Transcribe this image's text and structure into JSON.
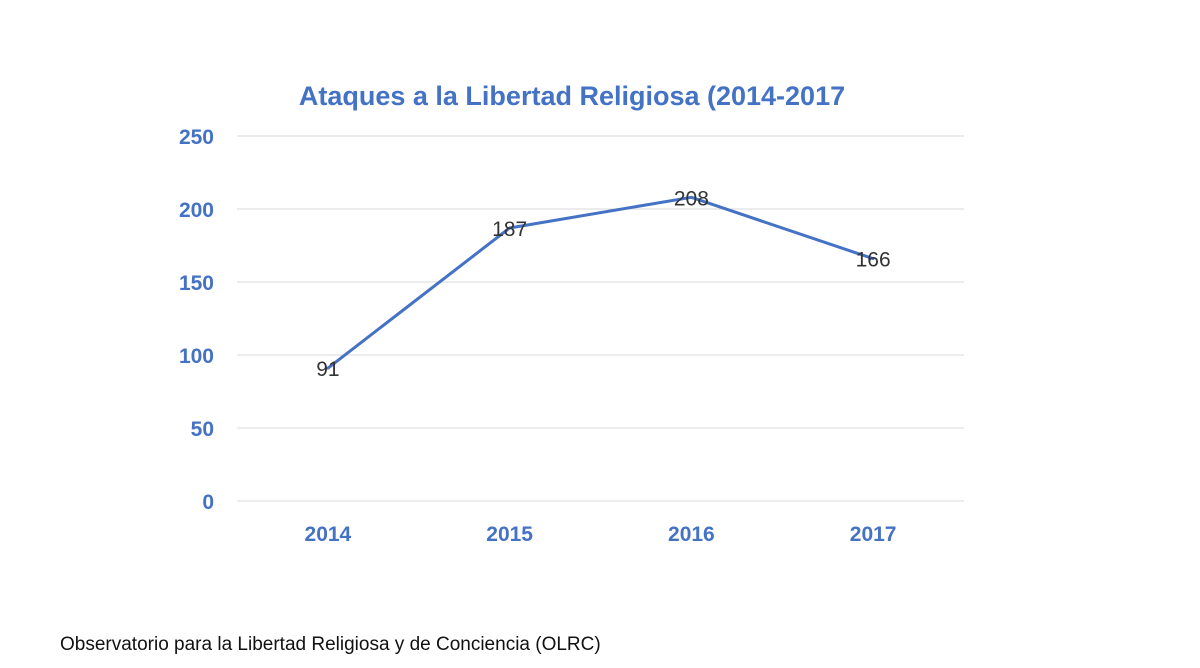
{
  "chart_data": {
    "type": "line",
    "title": "Ataques a la Libertad Religiosa (2014-2017",
    "categories": [
      "2014",
      "2015",
      "2016",
      "2017"
    ],
    "series": [
      {
        "values": [
          91,
          187,
          208,
          166
        ]
      }
    ],
    "ylim": [
      0,
      250
    ],
    "yticks": [
      0,
      50,
      100,
      150,
      200,
      250
    ],
    "grid": true,
    "legend": "none",
    "colors": {
      "line": "#4472c4",
      "text": "#4472c4",
      "grid": "#d9d9d9",
      "data_label": "#333333"
    }
  },
  "source": "Observatorio para la Libertad Religiosa y de Conciencia (OLRC)"
}
